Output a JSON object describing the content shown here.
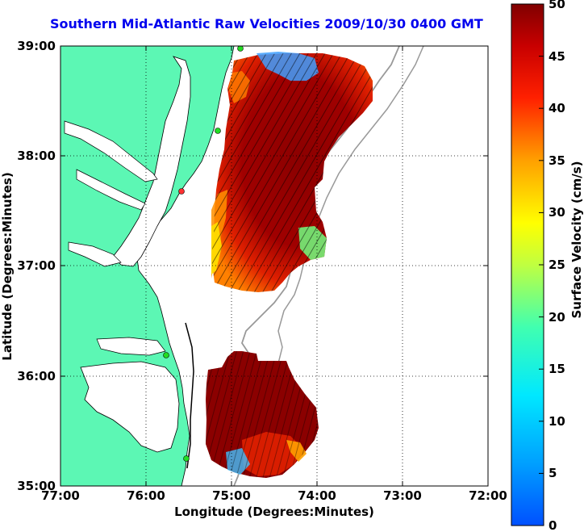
{
  "title": "Southern Mid-Atlantic Raw Velocities 2009/10/30 0400 GMT",
  "xlabel": "Longitude (Degrees:Minutes)",
  "ylabel": "Latitude (Degrees:Minutes)",
  "colorbar_label": "Surface Velocity (cm/s)",
  "x_ticks": [
    "77:00",
    "76:00",
    "75:00",
    "74:00",
    "73:00",
    "72:00"
  ],
  "y_ticks": [
    "39:00",
    "38:00",
    "37:00",
    "36:00",
    "35:00"
  ],
  "colorbar_ticks": [
    "50",
    "45",
    "40",
    "35",
    "30",
    "25",
    "20",
    "15",
    "10",
    "5",
    "0"
  ],
  "colors": {
    "land": "#5cf7b4",
    "ocean": "#ffffff",
    "velocity_high": "#8b0000",
    "velocity_low": "#0040ff",
    "station": "#22dd22",
    "title": "#0000ee"
  },
  "map": {
    "lon_range": [
      -77,
      -72
    ],
    "lat_range": [
      35,
      39
    ],
    "grid": "dotted",
    "colorbar_range": [
      0,
      50
    ]
  }
}
